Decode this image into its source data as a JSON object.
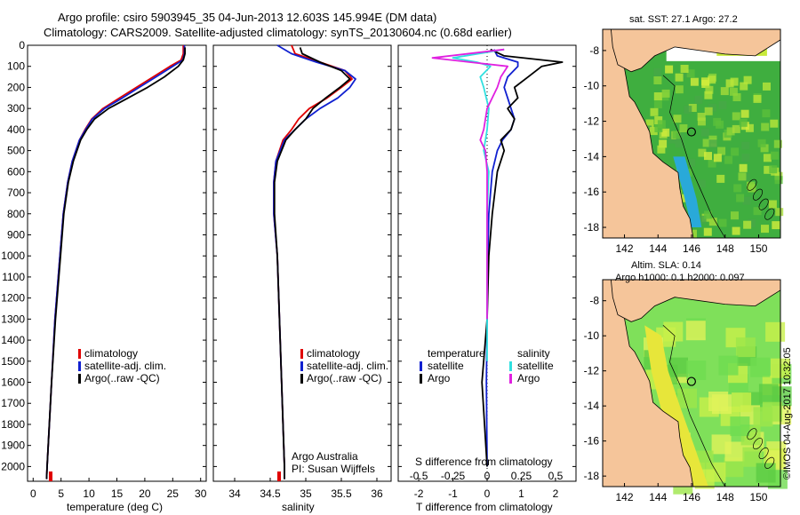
{
  "header": {
    "title_line1": "Argo profile: csiro 5903945_35 04-Jun-2013 12.603S 145.994E (DM data)",
    "title_line2": "Climatology: CARS2009. Satellite-adjusted climatology: synTS_20130604.nc (0.68d earlier)"
  },
  "colors": {
    "climatology": "#e00000",
    "satellite": "#1020d0",
    "argo": "#000000",
    "salinity_sat": "#30e0e0",
    "salinity_argo": "#e020e0",
    "land": "#f5c59a"
  },
  "legends": {
    "profile": [
      "climatology",
      "satellite-adj. clim.",
      "Argo(..raw -QC)"
    ],
    "diff_temperature_title": "temperature",
    "diff_salinity_title": "salinity",
    "diff_items": [
      "satellite",
      "Argo"
    ]
  },
  "annotations": {
    "institution": "Argo Australia",
    "pi": "PI: Susan Wijffels",
    "side_label": "©IMOS 04-Aug-2017 10:32:05"
  },
  "maps": {
    "sst_title": "sat. SST: 27.1 Argo: 27.2",
    "sla_title_line1": "Altim. SLA: 0.14",
    "sla_title_line2": "Argo h1000: 0.1 h2000: 0.097",
    "x_ticks": [
      "142",
      "144",
      "146",
      "148",
      "150"
    ],
    "y_ticks": [
      "-8",
      "-10",
      "-12",
      "-14",
      "-16",
      "-18"
    ],
    "argo_position": {
      "lon": 145.994,
      "lat": -12.603
    },
    "lon_range": [
      140.7,
      151.3
    ],
    "lat_range": [
      -18.6,
      -6.8
    ]
  },
  "chart_data": [
    {
      "type": "line",
      "name": "temperature",
      "xlabel": "temperature (deg C)",
      "ylabel": "",
      "xlim": [
        -1,
        31
      ],
      "ylim": [
        2070,
        0
      ],
      "x_ticks": [
        0,
        5,
        10,
        15,
        20,
        25,
        30
      ],
      "y_ticks": [
        0,
        100,
        200,
        300,
        400,
        500,
        600,
        700,
        800,
        900,
        1000,
        1100,
        1200,
        1300,
        1400,
        1500,
        1600,
        1700,
        1800,
        1900,
        2000
      ],
      "series": [
        {
          "name": "climatology",
          "x": [
            26.9,
            26.9,
            26.5,
            24.5,
            21.5,
            18.5,
            15.5,
            12.5,
            10.5,
            9.3,
            8.3,
            7.0,
            6.2,
            5.4,
            4.8,
            3.9,
            3.3,
            2.9,
            2.5,
            2.4
          ],
          "y": [
            0,
            40,
            70,
            100,
            150,
            200,
            250,
            300,
            350,
            400,
            450,
            550,
            650,
            800,
            1000,
            1300,
            1600,
            1800,
            2000,
            2060
          ]
        },
        {
          "name": "satellite-adj. clim.",
          "x": [
            27.1,
            27.1,
            26.8,
            25.0,
            22.0,
            19.0,
            16.0,
            12.8,
            10.6,
            9.4,
            8.3,
            7.0,
            6.2,
            5.4,
            4.8,
            3.9,
            3.3,
            2.9,
            2.5,
            2.4
          ],
          "y": [
            0,
            40,
            70,
            100,
            150,
            200,
            250,
            300,
            350,
            400,
            450,
            550,
            650,
            800,
            1000,
            1300,
            1600,
            1800,
            2000,
            2060
          ]
        },
        {
          "name": "Argo(..raw -QC)",
          "x": [
            27.2,
            27.2,
            26.9,
            26.0,
            23.5,
            20.5,
            17.0,
            13.5,
            11.0,
            9.6,
            8.5,
            7.2,
            6.3,
            5.5,
            4.9,
            4.0,
            3.3,
            2.9,
            2.5,
            2.4
          ],
          "y": [
            10,
            40,
            70,
            100,
            150,
            200,
            250,
            300,
            350,
            400,
            450,
            550,
            650,
            800,
            1000,
            1300,
            1600,
            1800,
            2000,
            2060
          ]
        }
      ]
    },
    {
      "type": "line",
      "name": "salinity",
      "xlabel": "salinity",
      "xlim": [
        33.7,
        36.2
      ],
      "ylim": [
        2070,
        0
      ],
      "x_ticks": [
        34,
        34.5,
        35,
        35.5,
        36
      ],
      "series": [
        {
          "name": "climatology",
          "x": [
            34.8,
            34.85,
            35.2,
            35.55,
            35.65,
            35.5,
            35.3,
            35.05,
            34.9,
            34.8,
            34.68,
            34.58,
            34.55,
            34.55,
            34.6,
            34.63,
            34.66,
            34.68,
            34.7,
            34.7
          ],
          "y": [
            0,
            40,
            80,
            120,
            160,
            200,
            250,
            300,
            350,
            400,
            450,
            550,
            650,
            800,
            1000,
            1300,
            1600,
            1800,
            2000,
            2060
          ]
        },
        {
          "name": "satellite-adj. clim.",
          "x": [
            34.6,
            34.8,
            35.15,
            35.55,
            35.7,
            35.62,
            35.45,
            35.2,
            35.0,
            34.85,
            34.7,
            34.58,
            34.55,
            34.55,
            34.6,
            34.63,
            34.66,
            34.68,
            34.7,
            34.7
          ],
          "y": [
            0,
            40,
            80,
            120,
            160,
            200,
            250,
            300,
            350,
            400,
            450,
            550,
            650,
            800,
            1000,
            1300,
            1600,
            1800,
            2000,
            2060
          ]
        },
        {
          "name": "Argo(..raw -QC)",
          "x": [
            34.92,
            34.95,
            35.2,
            35.5,
            35.62,
            35.48,
            35.28,
            35.1,
            35.0,
            34.85,
            34.72,
            34.6,
            34.56,
            34.56,
            34.6,
            34.63,
            34.66,
            34.68,
            34.7,
            34.7
          ],
          "y": [
            10,
            40,
            80,
            120,
            160,
            200,
            250,
            300,
            350,
            400,
            450,
            550,
            650,
            800,
            1000,
            1300,
            1600,
            1800,
            2000,
            2060
          ]
        }
      ]
    },
    {
      "type": "line",
      "name": "difference",
      "xlabel": "T difference from climatology",
      "xlabel_top": "S difference from climatology",
      "xlim": [
        -2.6,
        2.6
      ],
      "ylim": [
        2070,
        0
      ],
      "x_ticks": [
        -2,
        -1,
        0,
        1,
        2
      ],
      "x_ticks_top": [
        "-0.5",
        "-0.25",
        "0",
        "0.25",
        "0.5"
      ],
      "x_ticks_top_pos": [
        -2,
        -1,
        0,
        1,
        2
      ],
      "series": [
        {
          "name": "temperature satellite",
          "x": [
            0.2,
            0.3,
            0.9,
            0.9,
            0.6,
            0.5,
            0.6,
            0.7,
            0.8,
            0.7,
            0.45,
            0.3,
            0.15,
            0.05,
            0.02,
            0.0,
            -0.02,
            0.0
          ],
          "y": [
            20,
            50,
            80,
            100,
            150,
            200,
            250,
            300,
            350,
            400,
            450,
            500,
            600,
            800,
            1000,
            1300,
            1600,
            2000
          ]
        },
        {
          "name": "temperature Argo",
          "x": [
            0.1,
            0.5,
            2.2,
            1.6,
            1.2,
            0.8,
            0.9,
            0.6,
            0.8,
            0.7,
            0.4,
            0.5,
            0.3,
            0.15,
            0.05,
            0.0,
            -0.15,
            0.0
          ],
          "y": [
            20,
            50,
            80,
            100,
            150,
            200,
            250,
            300,
            350,
            400,
            450,
            500,
            600,
            800,
            1000,
            1300,
            1600,
            2000
          ]
        },
        {
          "name": "salinity satellite",
          "x": [
            0.5,
            -1.0,
            -0.3,
            0.1,
            -0.2,
            -0.1,
            0.05,
            0.0,
            -0.05,
            -0.1,
            0.05,
            0.0,
            0.0,
            0.0,
            0.0
          ],
          "y": [
            20,
            60,
            80,
            100,
            150,
            200,
            300,
            400,
            450,
            500,
            600,
            800,
            1000,
            1300,
            1500
          ]
        },
        {
          "name": "salinity Argo",
          "x": [
            0.5,
            -1.6,
            -0.5,
            0.6,
            0.4,
            0.3,
            0.0,
            -0.1,
            -0.2,
            -0.05,
            0.0,
            0.0,
            0.0,
            0.0
          ],
          "y": [
            20,
            60,
            80,
            100,
            150,
            200,
            300,
            400,
            450,
            500,
            600,
            800,
            1000,
            1300
          ]
        }
      ]
    }
  ]
}
